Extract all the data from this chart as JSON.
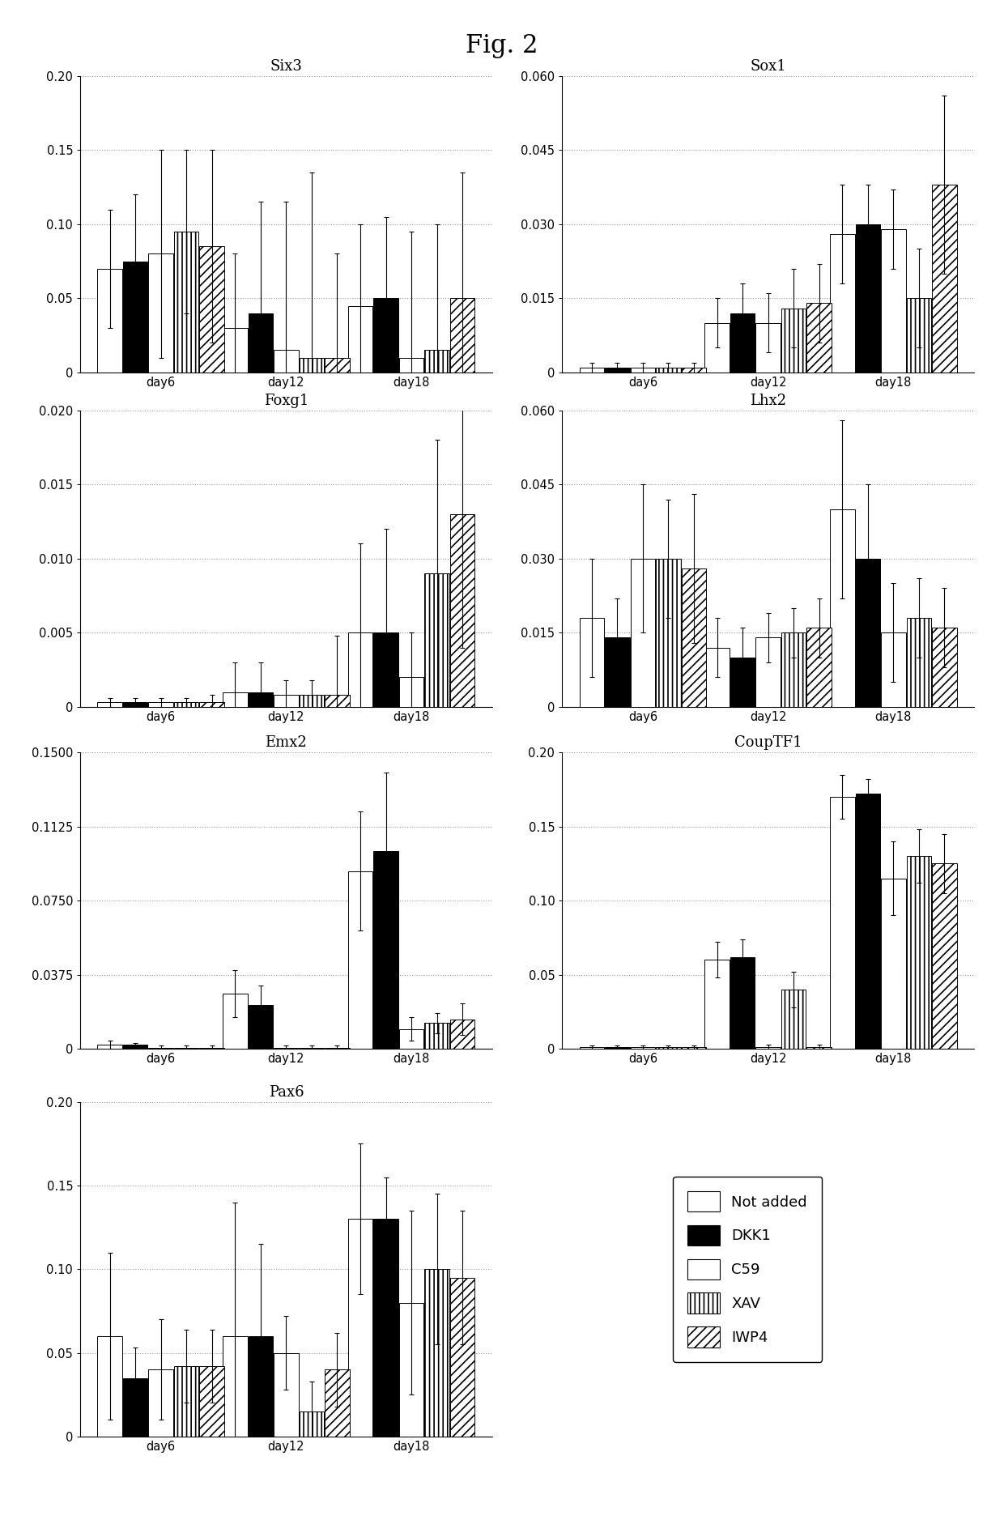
{
  "title": "Fig. 2",
  "subplots": [
    {
      "title": "Six3",
      "ylim": [
        0,
        0.2
      ],
      "yticks": [
        0,
        0.05,
        0.1,
        0.15,
        0.2
      ],
      "ytick_labels": [
        "0",
        "0.05",
        "0.10",
        "0.15",
        "0.20"
      ],
      "bars": {
        "not_added": [
          0.07,
          0.03,
          0.045
        ],
        "dkk1": [
          0.075,
          0.04,
          0.05
        ],
        "c59": [
          0.08,
          0.015,
          0.01
        ],
        "xav": [
          0.095,
          0.01,
          0.015
        ],
        "iwp4": [
          0.085,
          0.01,
          0.05
        ]
      },
      "errors": {
        "not_added": [
          0.04,
          0.05,
          0.055
        ],
        "dkk1": [
          0.045,
          0.075,
          0.055
        ],
        "c59": [
          0.07,
          0.1,
          0.085
        ],
        "xav": [
          0.055,
          0.125,
          0.085
        ],
        "iwp4": [
          0.065,
          0.07,
          0.085
        ]
      }
    },
    {
      "title": "Sox1",
      "ylim": [
        0,
        0.06
      ],
      "yticks": [
        0,
        0.015,
        0.03,
        0.045,
        0.06
      ],
      "ytick_labels": [
        "0",
        "0.015",
        "0.030",
        "0.045",
        "0.060"
      ],
      "bars": {
        "not_added": [
          0.001,
          0.01,
          0.028
        ],
        "dkk1": [
          0.001,
          0.012,
          0.03
        ],
        "c59": [
          0.001,
          0.01,
          0.029
        ],
        "xav": [
          0.001,
          0.013,
          0.015
        ],
        "iwp4": [
          0.001,
          0.014,
          0.038
        ]
      },
      "errors": {
        "not_added": [
          0.001,
          0.005,
          0.01
        ],
        "dkk1": [
          0.001,
          0.006,
          0.008
        ],
        "c59": [
          0.001,
          0.006,
          0.008
        ],
        "xav": [
          0.001,
          0.008,
          0.01
        ],
        "iwp4": [
          0.001,
          0.008,
          0.018
        ]
      }
    },
    {
      "title": "Foxg1",
      "ylim": [
        0,
        0.02
      ],
      "yticks": [
        0,
        0.005,
        0.01,
        0.015,
        0.02
      ],
      "ytick_labels": [
        "0",
        "0.005",
        "0.010",
        "0.015",
        "0.020"
      ],
      "bars": {
        "not_added": [
          0.0003,
          0.001,
          0.005
        ],
        "dkk1": [
          0.0003,
          0.001,
          0.005
        ],
        "c59": [
          0.0003,
          0.0008,
          0.002
        ],
        "xav": [
          0.0003,
          0.0008,
          0.009
        ],
        "iwp4": [
          0.0003,
          0.0008,
          0.013
        ]
      },
      "errors": {
        "not_added": [
          0.0003,
          0.002,
          0.006
        ],
        "dkk1": [
          0.0003,
          0.002,
          0.007
        ],
        "c59": [
          0.0003,
          0.001,
          0.003
        ],
        "xav": [
          0.0003,
          0.001,
          0.009
        ],
        "iwp4": [
          0.0005,
          0.004,
          0.009
        ]
      }
    },
    {
      "title": "Lhx2",
      "ylim": [
        0,
        0.06
      ],
      "yticks": [
        0,
        0.015,
        0.03,
        0.045,
        0.06
      ],
      "ytick_labels": [
        "0",
        "0.015",
        "0.030",
        "0.045",
        "0.060"
      ],
      "bars": {
        "not_added": [
          0.018,
          0.012,
          0.04
        ],
        "dkk1": [
          0.014,
          0.01,
          0.03
        ],
        "c59": [
          0.03,
          0.014,
          0.015
        ],
        "xav": [
          0.03,
          0.015,
          0.018
        ],
        "iwp4": [
          0.028,
          0.016,
          0.016
        ]
      },
      "errors": {
        "not_added": [
          0.012,
          0.006,
          0.018
        ],
        "dkk1": [
          0.008,
          0.006,
          0.015
        ],
        "c59": [
          0.015,
          0.005,
          0.01
        ],
        "xav": [
          0.012,
          0.005,
          0.008
        ],
        "iwp4": [
          0.015,
          0.006,
          0.008
        ]
      }
    },
    {
      "title": "Emx2",
      "ylim": [
        0,
        0.15
      ],
      "yticks": [
        0,
        0.0375,
        0.075,
        0.1125,
        0.15
      ],
      "ytick_labels": [
        "0",
        "0.0375",
        "0.0750",
        "0.1125",
        "0.1500"
      ],
      "bars": {
        "not_added": [
          0.002,
          0.028,
          0.09
        ],
        "dkk1": [
          0.002,
          0.022,
          0.1
        ],
        "c59": [
          0.0005,
          0.0005,
          0.01
        ],
        "xav": [
          0.0005,
          0.0005,
          0.013
        ],
        "iwp4": [
          0.0005,
          0.0005,
          0.015
        ]
      },
      "errors": {
        "not_added": [
          0.002,
          0.012,
          0.03
        ],
        "dkk1": [
          0.001,
          0.01,
          0.04
        ],
        "c59": [
          0.001,
          0.001,
          0.006
        ],
        "xav": [
          0.001,
          0.001,
          0.005
        ],
        "iwp4": [
          0.001,
          0.001,
          0.008
        ]
      }
    },
    {
      "title": "CoupTF1",
      "ylim": [
        0,
        0.2
      ],
      "yticks": [
        0,
        0.05,
        0.1,
        0.15,
        0.2
      ],
      "ytick_labels": [
        "0",
        "0.05",
        "0.10",
        "0.15",
        "0.20"
      ],
      "bars": {
        "not_added": [
          0.001,
          0.06,
          0.17
        ],
        "dkk1": [
          0.001,
          0.062,
          0.172
        ],
        "c59": [
          0.001,
          0.001,
          0.115
        ],
        "xav": [
          0.001,
          0.04,
          0.13
        ],
        "iwp4": [
          0.001,
          0.001,
          0.125
        ]
      },
      "errors": {
        "not_added": [
          0.001,
          0.012,
          0.015
        ],
        "dkk1": [
          0.001,
          0.012,
          0.01
        ],
        "c59": [
          0.001,
          0.002,
          0.025
        ],
        "xav": [
          0.001,
          0.012,
          0.018
        ],
        "iwp4": [
          0.001,
          0.002,
          0.02
        ]
      }
    },
    {
      "title": "Pax6",
      "ylim": [
        0,
        0.2
      ],
      "yticks": [
        0,
        0.05,
        0.1,
        0.15,
        0.2
      ],
      "ytick_labels": [
        "0",
        "0.05",
        "0.10",
        "0.15",
        "0.20"
      ],
      "bars": {
        "not_added": [
          0.06,
          0.06,
          0.13
        ],
        "dkk1": [
          0.035,
          0.06,
          0.13
        ],
        "c59": [
          0.04,
          0.05,
          0.08
        ],
        "xav": [
          0.042,
          0.015,
          0.1
        ],
        "iwp4": [
          0.042,
          0.04,
          0.095
        ]
      },
      "errors": {
        "not_added": [
          0.05,
          0.08,
          0.045
        ],
        "dkk1": [
          0.018,
          0.055,
          0.025
        ],
        "c59": [
          0.03,
          0.022,
          0.055
        ],
        "xav": [
          0.022,
          0.018,
          0.045
        ],
        "iwp4": [
          0.022,
          0.022,
          0.04
        ]
      }
    }
  ],
  "bar_keys": [
    "not_added",
    "dkk1",
    "c59",
    "xav",
    "iwp4"
  ],
  "bar_colors": [
    "white",
    "black",
    "white",
    "white",
    "white"
  ],
  "bar_hatches": [
    "",
    "",
    "===",
    "|||",
    "///"
  ],
  "bar_edgecolors": [
    "black",
    "black",
    "black",
    "black",
    "black"
  ],
  "legend_labels": [
    "Not added",
    "DKK1",
    "C59",
    "XAV",
    "IWP4"
  ],
  "background_color": "white",
  "grid_color": "#999999",
  "title_fontsize": 22
}
